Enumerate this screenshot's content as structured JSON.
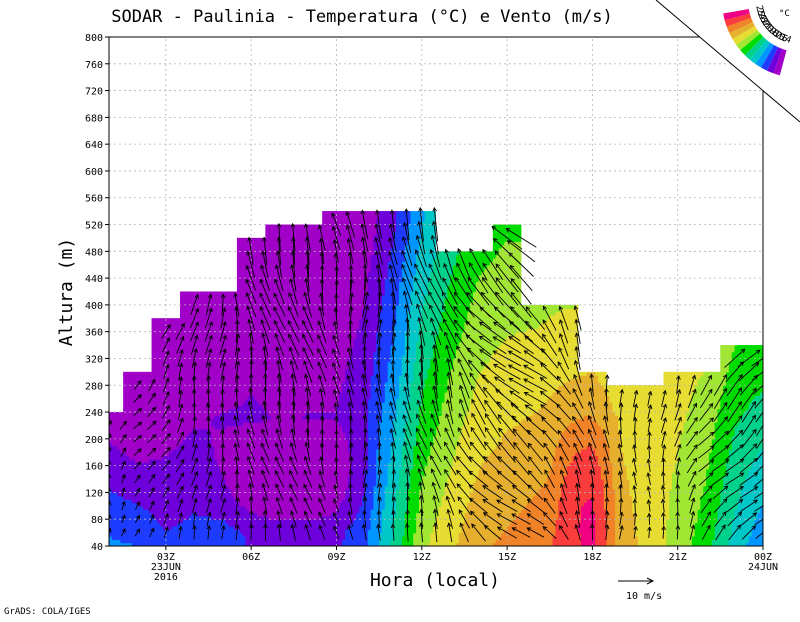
{
  "chart_data": {
    "type": "heatmap",
    "title": "SODAR - Paulinia - Temperatura (°C) e Vento (m/s)",
    "xlabel": "Hora (local)",
    "ylabel": "Altura (m)",
    "credit": "GrADS: COLA/IGES",
    "reference_vector": "10 m/s",
    "ylim": [
      40,
      800
    ],
    "y_ticks": [
      40,
      80,
      120,
      160,
      200,
      240,
      280,
      320,
      360,
      400,
      440,
      480,
      520,
      560,
      600,
      640,
      680,
      720,
      760,
      800
    ],
    "xlim": [
      1,
      24
    ],
    "x_ticks": [
      {
        "hour": 3,
        "labels": [
          "03Z",
          "23JUN",
          "2016"
        ]
      },
      {
        "hour": 6,
        "labels": [
          "06Z"
        ]
      },
      {
        "hour": 9,
        "labels": [
          "09Z"
        ]
      },
      {
        "hour": 12,
        "labels": [
          "12Z"
        ]
      },
      {
        "hour": 15,
        "labels": [
          "15Z"
        ]
      },
      {
        "hour": 18,
        "labels": [
          "18Z"
        ]
      },
      {
        "hour": 21,
        "labels": [
          "21Z"
        ]
      },
      {
        "hour": 24,
        "labels": [
          "00Z",
          "24JUN"
        ]
      }
    ],
    "grid": true,
    "legend": {
      "position": "top-right",
      "unit": "°C",
      "levels": [
        14,
        15,
        16,
        17,
        18,
        19,
        20,
        21,
        22,
        23,
        24,
        25
      ],
      "colors": [
        "#a000c8",
        "#6e00dc",
        "#1e3cff",
        "#0096ff",
        "#00c8c8",
        "#00d28c",
        "#00dc00",
        "#a0e632",
        "#e6dc32",
        "#e6af2d",
        "#f08228",
        "#fa3c3c",
        "#f00082"
      ]
    },
    "data_top_height_m": [
      {
        "hour": 1,
        "top": 240
      },
      {
        "hour": 2,
        "top": 300
      },
      {
        "hour": 3,
        "top": 380
      },
      {
        "hour": 4,
        "top": 420
      },
      {
        "hour": 5,
        "top": 420
      },
      {
        "hour": 6,
        "top": 500
      },
      {
        "hour": 7,
        "top": 520
      },
      {
        "hour": 8,
        "top": 520
      },
      {
        "hour": 9,
        "top": 540
      },
      {
        "hour": 10,
        "top": 540
      },
      {
        "hour": 11,
        "top": 540
      },
      {
        "hour": 12,
        "top": 540
      },
      {
        "hour": 13,
        "top": 480
      },
      {
        "hour": 14,
        "top": 480
      },
      {
        "hour": 15,
        "top": 520
      },
      {
        "hour": 16,
        "top": 400
      },
      {
        "hour": 17,
        "top": 400
      },
      {
        "hour": 18,
        "top": 300
      },
      {
        "hour": 19,
        "top": 280
      },
      {
        "hour": 20,
        "top": 280
      },
      {
        "hour": 21,
        "top": 300
      },
      {
        "hour": 22,
        "top": 300
      },
      {
        "hour": 23,
        "top": 340
      },
      {
        "hour": 24,
        "top": 340
      }
    ],
    "temperature_profile": {
      "hours": [
        1,
        2,
        3,
        4,
        5,
        6,
        7,
        8,
        9,
        10,
        11,
        12,
        13,
        14,
        15,
        16,
        17,
        18,
        19,
        20,
        21,
        22,
        23,
        24
      ],
      "surface_temp": [
        16.2,
        16.0,
        15.2,
        15.4,
        15.6,
        14.9,
        14.7,
        14.6,
        14.8,
        15.8,
        18.2,
        20.8,
        21.8,
        22.8,
        23.2,
        23.6,
        24.2,
        24.6,
        22.6,
        21.6,
        20.6,
        19.4,
        17.6,
        16.2
      ],
      "lapse_c_per_100m": [
        -1.4,
        -1.6,
        -0.9,
        -0.8,
        -0.8,
        -0.4,
        -0.4,
        -0.3,
        -0.4,
        -0.5,
        -0.7,
        -0.8,
        -0.7,
        -0.7,
        -0.7,
        -0.8,
        -0.9,
        -1.0,
        -0.4,
        -0.2,
        0.3,
        0.6,
        0.8,
        1.2
      ]
    },
    "wind_profile": {
      "hours": [
        1,
        2,
        3,
        4,
        5,
        6,
        7,
        8,
        9,
        10,
        11,
        12,
        13,
        14,
        15,
        16,
        17,
        18,
        19,
        20,
        21,
        22,
        23,
        24
      ],
      "direction_deg": [
        195,
        220,
        210,
        190,
        185,
        170,
        165,
        165,
        170,
        180,
        175,
        165,
        160,
        140,
        130,
        130,
        150,
        170,
        180,
        180,
        190,
        220,
        225,
        225
      ],
      "speed_ms": [
        3,
        3,
        4,
        5,
        5,
        6,
        6,
        6,
        5,
        6,
        6,
        7,
        7,
        8,
        8,
        7,
        6,
        6,
        5,
        4,
        5,
        6,
        7,
        7
      ]
    }
  }
}
